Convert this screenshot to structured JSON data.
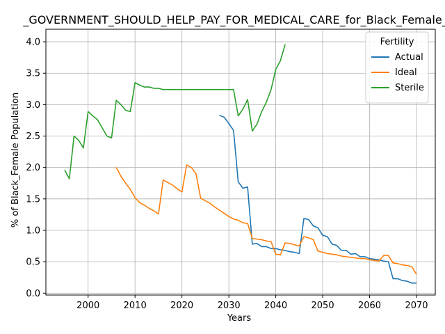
{
  "chart_data": {
    "type": "line",
    "title": "_GOVERNMENT_SHOULD_HELP_PAY_FOR_MEDICAL_CARE_for_Black_Female_A",
    "xlabel": "Years",
    "ylabel": "% of Black_Female Population",
    "xlim": [
      1991,
      2074
    ],
    "ylim": [
      -0.03,
      4.2
    ],
    "xticks": [
      2000,
      2010,
      2020,
      2030,
      2040,
      2050,
      2060,
      2070
    ],
    "yticks": [
      0.0,
      0.5,
      1.0,
      1.5,
      2.0,
      2.5,
      3.0,
      3.5,
      4.0
    ],
    "xtick_labels": [
      "2000",
      "2010",
      "2020",
      "2030",
      "2040",
      "2050",
      "2060",
      "2070"
    ],
    "ytick_labels": [
      "0.0",
      "0.5",
      "1.0",
      "1.5",
      "2.0",
      "2.5",
      "3.0",
      "3.5",
      "4.0"
    ],
    "grid": true,
    "legend": {
      "title": "Fertility",
      "placement": "top-right"
    },
    "series": [
      {
        "name": "Actual",
        "color": "#1f77b4",
        "x": [
          2028,
          2029,
          2030,
          2031,
          2032,
          2033,
          2034,
          2035,
          2036,
          2037,
          2038,
          2039,
          2040,
          2041,
          2042,
          2043,
          2044,
          2045,
          2046,
          2047,
          2048,
          2049,
          2050,
          2051,
          2052,
          2053,
          2054,
          2055,
          2056,
          2057,
          2058,
          2059,
          2060,
          2061,
          2062,
          2063,
          2064,
          2065,
          2066,
          2067,
          2068,
          2069,
          2070
        ],
        "y": [
          2.83,
          2.8,
          2.7,
          2.59,
          1.77,
          1.67,
          1.69,
          0.78,
          0.79,
          0.74,
          0.74,
          0.71,
          0.71,
          0.69,
          0.68,
          0.66,
          0.65,
          0.63,
          1.19,
          1.17,
          1.07,
          1.04,
          0.92,
          0.9,
          0.78,
          0.76,
          0.68,
          0.68,
          0.62,
          0.63,
          0.58,
          0.58,
          0.55,
          0.54,
          0.53,
          0.51,
          0.5,
          0.23,
          0.23,
          0.2,
          0.19,
          0.16,
          0.16
        ]
      },
      {
        "name": "Ideal",
        "color": "#ff7f0e",
        "x": [
          2006,
          2007,
          2008,
          2009,
          2010,
          2011,
          2012,
          2013,
          2014,
          2015,
          2016,
          2017,
          2018,
          2019,
          2020,
          2021,
          2022,
          2023,
          2024,
          2025,
          2026,
          2027,
          2028,
          2029,
          2030,
          2031,
          2032,
          2033,
          2034,
          2035,
          2036,
          2037,
          2038,
          2039,
          2040,
          2041,
          2042,
          2043,
          2044,
          2045,
          2046,
          2047,
          2048,
          2049,
          2050,
          2051,
          2052,
          2053,
          2054,
          2055,
          2056,
          2057,
          2058,
          2059,
          2060,
          2061,
          2062,
          2063,
          2064,
          2065,
          2066,
          2067,
          2068,
          2069,
          2070
        ],
        "y": [
          2.0,
          1.86,
          1.75,
          1.65,
          1.52,
          1.44,
          1.4,
          1.35,
          1.31,
          1.26,
          1.8,
          1.76,
          1.72,
          1.66,
          1.61,
          2.04,
          2.0,
          1.9,
          1.51,
          1.47,
          1.43,
          1.37,
          1.32,
          1.27,
          1.22,
          1.18,
          1.16,
          1.12,
          1.11,
          0.87,
          0.86,
          0.85,
          0.83,
          0.82,
          0.62,
          0.61,
          0.8,
          0.79,
          0.77,
          0.75,
          0.9,
          0.88,
          0.85,
          0.67,
          0.65,
          0.63,
          0.62,
          0.61,
          0.59,
          0.58,
          0.57,
          0.56,
          0.55,
          0.55,
          0.53,
          0.52,
          0.51,
          0.6,
          0.6,
          0.48,
          0.47,
          0.45,
          0.44,
          0.42,
          0.3
        ]
      },
      {
        "name": "Sterile",
        "color": "#2ca02c",
        "x": [
          1995,
          1996,
          1997,
          1998,
          1999,
          2000,
          2001,
          2002,
          2003,
          2004,
          2005,
          2006,
          2007,
          2008,
          2009,
          2010,
          2011,
          2012,
          2013,
          2014,
          2015,
          2016,
          2017,
          2018,
          2019,
          2020,
          2021,
          2022,
          2023,
          2024,
          2025,
          2026,
          2027,
          2028,
          2029,
          2030,
          2031,
          2032,
          2033,
          2034,
          2035,
          2036,
          2037,
          2038,
          2039,
          2040,
          2041,
          2042
        ],
        "y": [
          1.96,
          1.82,
          2.5,
          2.43,
          2.31,
          2.89,
          2.82,
          2.76,
          2.63,
          2.5,
          2.47,
          3.07,
          3.0,
          2.91,
          2.89,
          3.35,
          3.31,
          3.28,
          3.28,
          3.26,
          3.26,
          3.24,
          3.24,
          3.24,
          3.24,
          3.24,
          3.24,
          3.24,
          3.24,
          3.24,
          3.24,
          3.24,
          3.24,
          3.24,
          3.24,
          3.24,
          3.24,
          2.82,
          2.93,
          3.08,
          2.58,
          2.69,
          2.89,
          3.04,
          3.24,
          3.56,
          3.7,
          3.96
        ]
      }
    ]
  }
}
